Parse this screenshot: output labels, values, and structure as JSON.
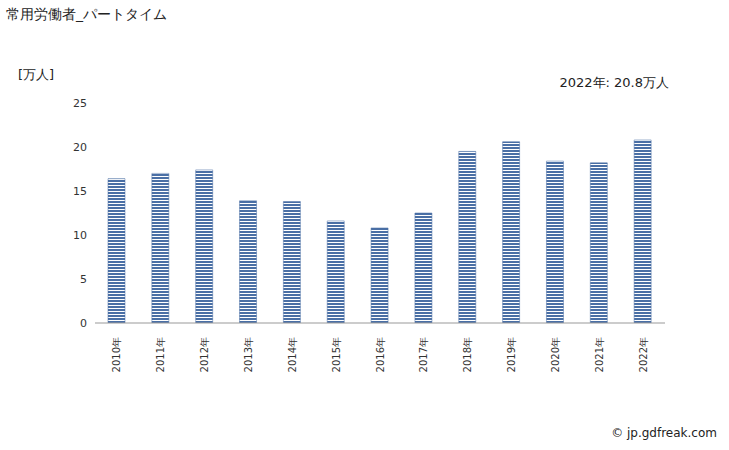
{
  "chart_data": {
    "type": "bar",
    "title": "常用労働者_パートタイム",
    "y_label": "[万人]",
    "annotation": "2022年: 20.8万人",
    "source": "© jp.gdfreak.com",
    "categories": [
      "2010年",
      "2011年",
      "2012年",
      "2013年",
      "2014年",
      "2015年",
      "2016年",
      "2017年",
      "2018年",
      "2019年",
      "2020年",
      "2021年",
      "2022年"
    ],
    "values": [
      16.4,
      17.0,
      17.4,
      13.9,
      13.8,
      11.6,
      10.8,
      12.5,
      19.5,
      20.6,
      18.4,
      18.2,
      20.8
    ],
    "color": "#4a6fa5",
    "ylim": [
      0,
      25
    ],
    "yticks": [
      0,
      5,
      10,
      15,
      20,
      25
    ],
    "grid": false
  }
}
